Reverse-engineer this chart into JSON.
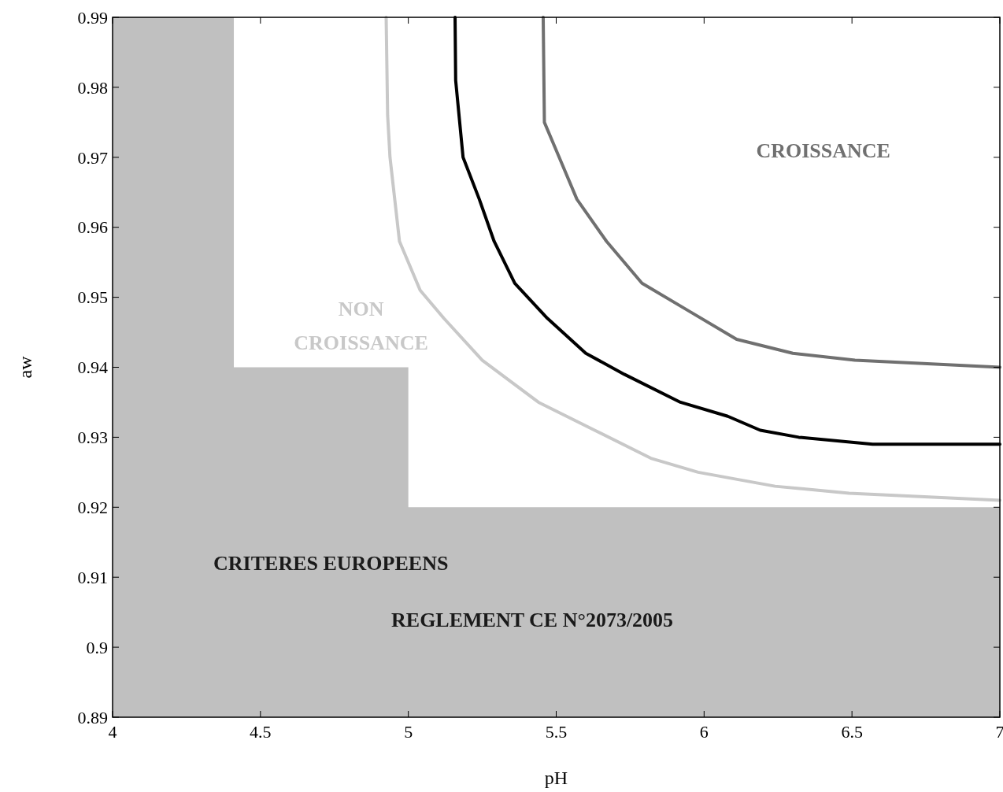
{
  "chart_data": {
    "type": "line",
    "xlabel": "pH",
    "ylabel": "aw",
    "xlim": [
      4,
      7
    ],
    "ylim": [
      0.89,
      0.99
    ],
    "xticks": [
      4,
      4.5,
      5,
      5.5,
      6,
      6.5,
      7
    ],
    "yticks": [
      0.89,
      0.9,
      0.91,
      0.92,
      0.93,
      0.94,
      0.95,
      0.96,
      0.97,
      0.98,
      0.99
    ],
    "grid": false,
    "marker": "none",
    "line_style": "solid",
    "series": [
      {
        "type": "area",
        "color": "#c0c0c0",
        "x": [
          4,
          4.41,
          4.41,
          5,
          5,
          7
        ],
        "values": [
          0.99,
          0.99,
          0.94,
          0.94,
          0.92,
          0.92
        ]
      },
      {
        "color": "#c8c8c8",
        "x": [
          4.925,
          4.93,
          4.938,
          4.97,
          5.04,
          5.12,
          5.25,
          5.44,
          5.63,
          5.82,
          5.98,
          6.24,
          6.49,
          7
        ],
        "values": [
          0.99,
          0.976,
          0.97,
          0.958,
          0.951,
          0.947,
          0.941,
          0.935,
          0.931,
          0.927,
          0.925,
          0.923,
          0.922,
          0.921
        ]
      },
      {
        "color": "#000000",
        "x": [
          5.158,
          5.16,
          5.185,
          5.24,
          5.29,
          5.36,
          5.47,
          5.6,
          5.73,
          5.92,
          6.08,
          6.19,
          6.32,
          6.57,
          7
        ],
        "values": [
          0.99,
          0.981,
          0.97,
          0.964,
          0.958,
          0.952,
          0.947,
          0.942,
          0.939,
          0.935,
          0.933,
          0.931,
          0.93,
          0.929,
          0.929
        ]
      },
      {
        "color": "#707070",
        "x": [
          5.456,
          5.46,
          5.51,
          5.57,
          5.67,
          5.79,
          5.95,
          6.11,
          6.3,
          6.51,
          7
        ],
        "values": [
          0.99,
          0.975,
          0.97,
          0.964,
          0.958,
          0.952,
          0.948,
          0.944,
          0.942,
          0.941,
          0.94
        ]
      }
    ],
    "annotations": [
      "CROISSANCE",
      "NON\nCROISSANCE",
      "CRITERES EUROPEENS",
      "REGLEMENT CE N°2073/2005"
    ]
  }
}
